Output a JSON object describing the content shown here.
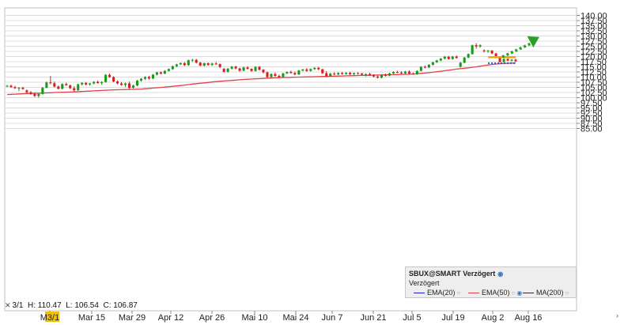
{
  "chart_data": {
    "type": "candlestick",
    "ylim": [
      85,
      140
    ],
    "yticks": [
      "140.00",
      "137.50",
      "135.00",
      "132.50",
      "130.00",
      "127.50",
      "125.00",
      "122.50",
      "120.00",
      "117.50",
      "115.00",
      "112.50",
      "110.00",
      "107.50",
      "105.00",
      "102.50",
      "100.00",
      "97.50",
      "95.00",
      "92.50",
      "90.00",
      "87.50",
      "85.00"
    ],
    "xticks": [
      "Mar 1",
      "Mar 15",
      "Mar 29",
      "Apr 12",
      "Apr 26",
      "Mai 10",
      "Mai 24",
      "Jun 7",
      "Jun 21",
      "Jul 5",
      "Jul 19",
      "Aug 2",
      "Aug 16"
    ],
    "xtick_display": [
      "M3/1",
      "Mar 15",
      "Mar 29",
      "Apr 12",
      "Apr 26",
      "Mai 10",
      "Mai 24",
      "Jun 7",
      "Jun 21",
      "Jul 5",
      "Jul 19",
      "Aug 2",
      "Aug 16"
    ],
    "candles": [
      [
        105.5,
        106.2,
        105.2,
        105.8
      ],
      [
        105.8,
        106.4,
        104.9,
        105.1
      ],
      [
        105.1,
        105.8,
        104.2,
        104.6
      ],
      [
        104.6,
        105.1,
        103.2,
        104.8
      ],
      [
        104.8,
        105.3,
        103.9,
        104.2
      ],
      [
        103.5,
        104.0,
        102.2,
        102.6
      ],
      [
        102.6,
        103.2,
        101.4,
        101.8
      ],
      [
        101.8,
        102.5,
        100.3,
        100.8
      ],
      [
        100.8,
        102.0,
        100.0,
        101.8
      ],
      [
        101.8,
        105.2,
        101.5,
        104.8
      ],
      [
        104.8,
        107.8,
        104.5,
        107.4
      ],
      [
        107.4,
        110.5,
        106.5,
        107.0
      ],
      [
        107.0,
        107.8,
        105.0,
        105.4
      ],
      [
        105.4,
        106.0,
        104.0,
        104.3
      ],
      [
        104.3,
        107.0,
        104.0,
        106.6
      ],
      [
        106.6,
        107.3,
        105.8,
        106.0
      ],
      [
        106.0,
        106.3,
        104.2,
        104.6
      ],
      [
        104.6,
        105.5,
        103.0,
        103.6
      ],
      [
        103.6,
        106.8,
        103.3,
        106.5
      ],
      [
        106.5,
        107.5,
        105.9,
        107.2
      ],
      [
        107.2,
        107.6,
        106.0,
        106.4
      ],
      [
        106.4,
        107.2,
        105.8,
        106.9
      ],
      [
        106.9,
        108.0,
        106.5,
        107.7
      ],
      [
        107.7,
        108.3,
        106.8,
        107.1
      ],
      [
        107.1,
        108.0,
        106.3,
        107.6
      ],
      [
        107.6,
        111.5,
        107.3,
        111.1
      ],
      [
        111.1,
        111.8,
        109.7,
        110.0
      ],
      [
        110.0,
        110.4,
        107.5,
        107.9
      ],
      [
        107.9,
        108.4,
        106.5,
        106.9
      ],
      [
        106.9,
        107.6,
        105.8,
        106.2
      ],
      [
        106.2,
        107.3,
        105.2,
        106.9
      ],
      [
        106.9,
        107.8,
        104.2,
        104.8
      ],
      [
        104.8,
        106.3,
        104.4,
        105.9
      ],
      [
        105.9,
        108.6,
        105.5,
        108.3
      ],
      [
        108.3,
        109.5,
        107.8,
        109.2
      ],
      [
        109.2,
        110.4,
        108.6,
        110.0
      ],
      [
        110.0,
        110.6,
        108.8,
        109.3
      ],
      [
        109.3,
        111.5,
        109.0,
        111.2
      ],
      [
        111.2,
        112.6,
        110.8,
        112.3
      ],
      [
        112.3,
        112.7,
        111.3,
        111.7
      ],
      [
        111.7,
        113.4,
        111.4,
        113.0
      ],
      [
        113.0,
        114.2,
        112.7,
        113.9
      ],
      [
        113.9,
        115.6,
        113.5,
        115.3
      ],
      [
        115.3,
        116.5,
        114.8,
        116.2
      ],
      [
        116.2,
        117.1,
        115.9,
        116.8
      ],
      [
        116.8,
        117.3,
        115.4,
        115.8
      ],
      [
        115.8,
        118.5,
        115.5,
        118.2
      ],
      [
        118.2,
        118.9,
        117.4,
        118.4
      ],
      [
        118.4,
        118.8,
        116.6,
        117.0
      ],
      [
        117.0,
        117.4,
        115.3,
        115.6
      ],
      [
        115.6,
        117.1,
        115.2,
        116.7
      ],
      [
        116.7,
        117.1,
        115.6,
        115.9
      ],
      [
        115.9,
        117.0,
        115.4,
        116.6
      ],
      [
        116.6,
        117.3,
        115.9,
        116.3
      ],
      [
        116.3,
        116.6,
        114.4,
        114.9
      ],
      [
        114.0,
        114.5,
        112.2,
        112.6
      ],
      [
        112.6,
        114.4,
        112.2,
        114.1
      ],
      [
        114.1,
        115.4,
        113.7,
        115.1
      ],
      [
        115.1,
        115.5,
        113.8,
        114.2
      ],
      [
        114.2,
        114.6,
        112.7,
        113.1
      ],
      [
        113.1,
        115.1,
        112.9,
        114.7
      ],
      [
        114.7,
        115.3,
        113.7,
        114.0
      ],
      [
        114.0,
        114.3,
        112.6,
        113.0
      ],
      [
        113.0,
        115.3,
        112.7,
        115.0
      ],
      [
        115.0,
        115.4,
        113.2,
        113.6
      ],
      [
        113.6,
        113.9,
        111.8,
        112.3
      ],
      [
        112.3,
        112.7,
        109.6,
        110.0
      ],
      [
        110.0,
        111.8,
        109.5,
        111.5
      ],
      [
        111.5,
        112.2,
        110.2,
        110.6
      ],
      [
        110.6,
        111.2,
        109.6,
        110.0
      ],
      [
        110.0,
        112.1,
        109.9,
        111.8
      ],
      [
        111.8,
        112.8,
        111.5,
        112.5
      ],
      [
        112.5,
        113.2,
        111.7,
        112.0
      ],
      [
        112.0,
        112.7,
        110.9,
        111.3
      ],
      [
        111.3,
        113.5,
        111.0,
        113.2
      ],
      [
        113.2,
        114.0,
        112.8,
        113.7
      ],
      [
        113.7,
        114.4,
        112.6,
        113.0
      ],
      [
        113.0,
        114.2,
        112.7,
        113.9
      ],
      [
        113.9,
        114.8,
        113.5,
        114.5
      ],
      [
        114.5,
        115.0,
        113.4,
        113.8
      ],
      [
        113.8,
        114.0,
        111.5,
        111.9
      ],
      [
        111.9,
        112.9,
        110.0,
        110.4
      ],
      [
        110.4,
        112.0,
        110.1,
        111.7
      ],
      [
        111.7,
        112.4,
        110.9,
        111.3
      ],
      [
        111.3,
        112.3,
        111.0,
        112.0
      ],
      [
        112.0,
        112.5,
        111.1,
        111.5
      ],
      [
        111.5,
        112.4,
        111.2,
        112.1
      ],
      [
        112.1,
        112.6,
        111.0,
        111.4
      ],
      [
        111.4,
        112.2,
        111.0,
        111.9
      ],
      [
        111.9,
        112.4,
        111.3,
        111.7
      ],
      [
        111.7,
        112.1,
        110.8,
        111.2
      ],
      [
        111.2,
        111.8,
        110.3,
        111.5
      ],
      [
        111.5,
        112.1,
        110.6,
        111.0
      ],
      [
        111.0,
        111.4,
        109.9,
        110.3
      ],
      [
        110.3,
        110.8,
        109.3,
        109.7
      ],
      [
        109.7,
        111.3,
        109.4,
        111.0
      ],
      [
        111.0,
        111.7,
        110.3,
        110.7
      ],
      [
        110.7,
        112.1,
        110.4,
        111.8
      ],
      [
        111.8,
        112.8,
        111.5,
        112.5
      ],
      [
        112.5,
        113.1,
        111.9,
        112.2
      ],
      [
        112.2,
        112.9,
        111.5,
        111.8
      ],
      [
        111.8,
        113.0,
        111.5,
        112.7
      ],
      [
        112.7,
        113.3,
        111.4,
        111.7
      ],
      [
        111.7,
        112.2,
        111.2,
        111.4
      ],
      [
        111.4,
        113.3,
        111.1,
        113.0
      ],
      [
        113.0,
        115.3,
        112.8,
        115.0
      ],
      [
        115.0,
        115.6,
        114.2,
        114.7
      ],
      [
        114.7,
        116.3,
        114.4,
        116.0
      ],
      [
        116.0,
        117.5,
        115.6,
        117.2
      ],
      [
        117.2,
        118.4,
        116.9,
        118.1
      ],
      [
        118.1,
        119.3,
        117.7,
        119.0
      ],
      [
        119.0,
        120.3,
        118.6,
        119.9
      ],
      [
        119.9,
        120.3,
        118.5,
        118.8
      ],
      [
        118.8,
        120.3,
        118.5,
        120.0
      ],
      [
        120.0,
        120.5,
        118.9,
        119.3
      ],
      [
        115.0,
        117.3,
        114.6,
        117.0
      ],
      [
        117.0,
        119.8,
        116.7,
        119.5
      ],
      [
        119.5,
        121.5,
        119.2,
        121.2
      ],
      [
        121.2,
        125.8,
        120.9,
        125.5
      ],
      [
        125.5,
        126.5,
        123.8,
        124.9
      ],
      [
        124.9,
        125.9,
        124.3,
        125.5
      ],
      [
        123.0,
        123.5,
        122.0,
        122.6
      ],
      [
        122.6,
        123.2,
        121.7,
        122.9
      ],
      [
        122.9,
        123.1,
        121.2,
        121.5
      ],
      [
        121.5,
        121.8,
        119.1,
        119.4
      ],
      [
        119.4,
        119.8,
        117.0,
        117.4
      ],
      [
        117.4,
        119.1,
        117.0,
        118.8
      ],
      [
        118.8,
        119.2,
        117.8,
        118.0
      ],
      [
        118.0,
        118.8,
        117.6,
        118.5
      ],
      [
        118.5,
        118.9,
        117.4,
        117.7
      ]
    ],
    "series": [
      {
        "name": "EMA(20)",
        "color": "#1f1fcf",
        "values": []
      },
      {
        "name": "EMA(50)",
        "color": "#e0404a",
        "values": [
          101.5,
          101.6,
          101.7,
          101.8,
          101.9,
          102.0,
          102.05,
          102.1,
          102.15,
          102.2,
          102.3,
          102.4,
          102.5,
          102.55,
          102.6,
          102.7,
          102.75,
          102.8,
          102.9,
          103.0,
          103.1,
          103.2,
          103.3,
          103.4,
          103.5,
          103.6,
          103.7,
          103.8,
          103.85,
          103.9,
          103.95,
          104.0,
          104.05,
          104.1,
          104.2,
          104.35,
          104.5,
          104.65,
          104.8,
          104.95,
          105.1,
          105.3,
          105.5,
          105.7,
          105.9,
          106.1,
          106.35,
          106.6,
          106.8,
          107.0,
          107.2,
          107.4,
          107.6,
          107.8,
          107.95,
          108.1,
          108.25,
          108.4,
          108.55,
          108.7,
          108.85,
          108.95,
          109.05,
          109.15,
          109.25,
          109.35,
          109.45,
          109.55,
          109.65,
          109.75,
          109.8,
          109.85,
          109.9,
          109.95,
          110.0,
          110.05,
          110.1,
          110.15,
          110.2,
          110.25,
          110.3,
          110.35,
          110.4,
          110.45,
          110.5,
          110.55,
          110.6,
          110.65,
          110.7,
          110.75,
          110.8,
          110.85,
          110.9,
          110.95,
          111.0,
          111.05,
          111.1,
          111.15,
          111.2,
          111.25,
          111.3,
          111.35,
          111.4,
          111.5,
          111.65,
          111.8,
          111.95,
          112.15,
          112.35,
          112.6,
          112.85,
          113.1,
          113.35,
          113.6,
          113.9,
          114.1,
          114.3,
          114.5,
          114.75,
          115.0,
          115.3,
          115.6,
          115.9,
          116.15,
          116.35,
          116.5,
          116.6,
          116.7,
          116.8,
          116.9
        ]
      },
      {
        "name": "MA(200)",
        "color": "#2a2a2a",
        "values": []
      }
    ],
    "annotations": [
      {
        "type": "resistance",
        "color": "#f5a300",
        "from": 122,
        "to": 127,
        "y": 119.7
      },
      {
        "type": "support",
        "color": "#3a4fd8",
        "from": 122,
        "to": 127,
        "y": 116.8
      },
      {
        "type": "trend-arrow",
        "color": "#2aa02a",
        "from": [
          124,
          119.8
        ],
        "to": [
          133,
          129.5
        ]
      }
    ],
    "legend": {
      "title": "SBUX@SMART Verzögert",
      "subtitle": "Verzögert",
      "items": [
        "EMA(20)",
        "EMA(50)",
        "MA(200)"
      ]
    },
    "hover": {
      "date": "3/1",
      "h": "H: 110.47",
      "l": "L: 106.54",
      "c": "C: 106.87"
    },
    "colors": {
      "up": "#1a9a1a",
      "down": "#d42020",
      "grid": "#dcdcdc",
      "axis": "#888888"
    }
  }
}
